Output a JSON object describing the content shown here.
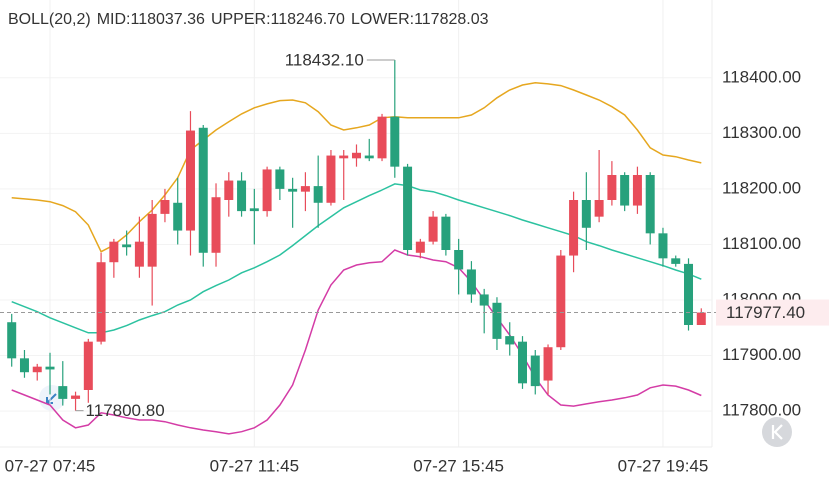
{
  "chart_data": {
    "type": "candlestick",
    "indicator": "BOLL(20,2)",
    "categories": [
      null,
      null,
      null,
      "07-27 07:45",
      null,
      null,
      null,
      null,
      null,
      null,
      null,
      null,
      null,
      null,
      null,
      null,
      null,
      null,
      null,
      "07-27 11:45",
      null,
      null,
      null,
      null,
      null,
      null,
      null,
      null,
      null,
      null,
      null,
      null,
      null,
      null,
      null,
      "07-27 15:45",
      null,
      null,
      null,
      null,
      null,
      null,
      null,
      null,
      null,
      null,
      null,
      null,
      null,
      null,
      null,
      "07-27 19:45",
      null,
      null,
      null
    ],
    "candles": {
      "up_color": "#e84c5a",
      "down_color": "#27a17c",
      "open": [
        117960,
        117895,
        117870,
        117880,
        117845,
        117822,
        117838,
        117925,
        118068,
        118100,
        118060,
        118060,
        118155,
        118175,
        118125,
        118310,
        118085,
        118180,
        118215,
        118165,
        118160,
        118235,
        118200,
        118195,
        118205,
        118175,
        118255,
        118255,
        118260,
        118255,
        118330,
        118240,
        118085,
        118105,
        118150,
        118090,
        118055,
        118010,
        117995,
        117935,
        117925,
        117900,
        117855,
        117915,
        118080,
        118180,
        118150,
        118180,
        118225,
        118170,
        118225,
        118120,
        118075,
        118065,
        117955
      ],
      "high": [
        117975,
        117910,
        117885,
        117905,
        117890,
        117835,
        117930,
        118085,
        118110,
        118125,
        118150,
        118180,
        118200,
        118220,
        118340,
        118315,
        118210,
        118230,
        118230,
        118200,
        118240,
        118240,
        118220,
        118230,
        118260,
        118270,
        118270,
        118280,
        118290,
        118335,
        118432.1,
        118245,
        118110,
        118160,
        118155,
        118110,
        118070,
        118020,
        118005,
        117960,
        117935,
        117910,
        117920,
        118090,
        118195,
        118230,
        118270,
        118250,
        118230,
        118240,
        118230,
        118130,
        118080,
        118075,
        117985
      ],
      "low": [
        117880,
        117860,
        117855,
        117830,
        117810,
        117800.8,
        117815,
        117920,
        118040,
        118080,
        118040,
        117990,
        118140,
        118100,
        118080,
        118060,
        118060,
        118150,
        118150,
        118100,
        118150,
        118180,
        118130,
        118160,
        118130,
        118170,
        118180,
        118240,
        118250,
        118250,
        118220,
        118080,
        118075,
        118100,
        118080,
        118010,
        117995,
        117940,
        117910,
        117900,
        117840,
        117830,
        117830,
        117910,
        118050,
        118090,
        118140,
        118170,
        118160,
        118155,
        118100,
        118060,
        118060,
        117945,
        117955
      ],
      "close": [
        117895,
        117870,
        117880,
        117875,
        117822,
        117828,
        117925,
        118068,
        118105,
        118095,
        118105,
        118155,
        118180,
        118125,
        118305,
        118085,
        118185,
        118215,
        118160,
        118160,
        118235,
        118200,
        118195,
        118205,
        118175,
        118260,
        118260,
        118265,
        118255,
        118330,
        118240,
        118090,
        118105,
        118150,
        118090,
        118055,
        118010,
        117990,
        117930,
        117920,
        117850,
        117845,
        117915,
        118080,
        118180,
        118130,
        118180,
        118225,
        118170,
        118225,
        118120,
        118075,
        118065,
        117955,
        117977.4
      ]
    },
    "bands": [
      {
        "name": "MID:118037.36",
        "color": "#2cc2a0",
        "values": [
          117997,
          117988,
          117979,
          117968,
          117959,
          117950,
          117941,
          117941,
          117946,
          117954,
          117964,
          117972,
          117979,
          117991,
          118000,
          118015,
          118026,
          118036,
          118049,
          118058,
          118069,
          118081,
          118098,
          118116,
          118134,
          118150,
          118166,
          118177,
          118188,
          118198,
          118209,
          118206,
          118198,
          118195,
          118188,
          118180,
          118173,
          118166,
          118159,
          118152,
          118144,
          118137,
          118130,
          118123,
          118116,
          118105,
          118098,
          118090,
          118083,
          118076,
          118069,
          118062,
          118054,
          118047,
          118037.36
        ]
      },
      {
        "name": "UPPER:118246.70",
        "color": "#e6a71f",
        "values": [
          118184,
          118182,
          118180,
          118177,
          118170,
          118159,
          118135,
          118087,
          118099,
          118117,
          118141,
          118162,
          118189,
          118220,
          118270,
          118288,
          118306,
          118321,
          118335,
          118346,
          118353,
          118359,
          118360,
          118355,
          118339,
          118315,
          118306,
          118310,
          118315,
          118328,
          118330,
          118328,
          118328,
          118328,
          118328,
          118328,
          118333,
          118346,
          118364,
          118378,
          118387,
          118391,
          118389,
          118386,
          118378,
          118369,
          118360,
          118348,
          118333,
          118306,
          118274,
          118261,
          118258,
          118252,
          118246.7
        ]
      },
      {
        "name": "LOWER:117828.03",
        "color": "#d43ca6",
        "values": [
          117838,
          117829,
          117820,
          117811,
          117784,
          117770,
          117775,
          117797,
          117793,
          117788,
          117784,
          117784,
          117781,
          117775,
          117770,
          117766,
          117763,
          117759,
          117763,
          117770,
          117784,
          117811,
          117847,
          117910,
          117982,
          118027,
          118054,
          118063,
          118067,
          118069,
          118090,
          118081,
          118078,
          118072,
          118069,
          118058,
          118033,
          118000,
          117968,
          117937,
          117901,
          117860,
          117829,
          117811,
          117809,
          117813,
          117817,
          117820,
          117824,
          117829,
          117842,
          117847,
          117845,
          117838,
          117828.03
        ]
      }
    ],
    "high_label": {
      "value": 118432.1,
      "label": "118432.10"
    },
    "low_label": {
      "value": 117800.8,
      "label": "117800.80"
    },
    "last_price": {
      "value": 117977.4,
      "label": "117977.40",
      "color": "#e84c5a"
    },
    "ylim": [
      117739,
      118540
    ],
    "yticks": [
      {
        "value": 117800,
        "label": "117800.00"
      },
      {
        "value": 117900,
        "label": "117900.00"
      },
      {
        "value": 118000,
        "label": "118000.00"
      },
      {
        "value": 118100,
        "label": "118100.00"
      },
      {
        "value": 118200,
        "label": "118200.00"
      },
      {
        "value": 118300,
        "label": "118300.00"
      },
      {
        "value": 118400,
        "label": "118400.00"
      }
    ],
    "grid": true
  }
}
